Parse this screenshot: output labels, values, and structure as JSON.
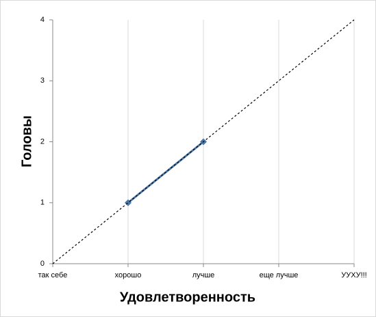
{
  "chart_data": {
    "type": "line",
    "x_label": "Удовлетворенность",
    "y_label": "Головы",
    "categories": [
      "так себе",
      "хорошо",
      "лучше",
      "еще лучше",
      "УУХУ!!!"
    ],
    "series": [
      {
        "color": "#4a76a8",
        "values": [
          null,
          1,
          2,
          null,
          null
        ],
        "markers": true,
        "dashed": false
      },
      {
        "color": "#000000",
        "values": [
          0,
          1,
          2,
          3,
          4
        ],
        "markers": false,
        "dashed": true
      }
    ],
    "ylim": [
      0,
      4
    ],
    "yticks": [
      0,
      1,
      2,
      3,
      4
    ],
    "grid": true
  }
}
